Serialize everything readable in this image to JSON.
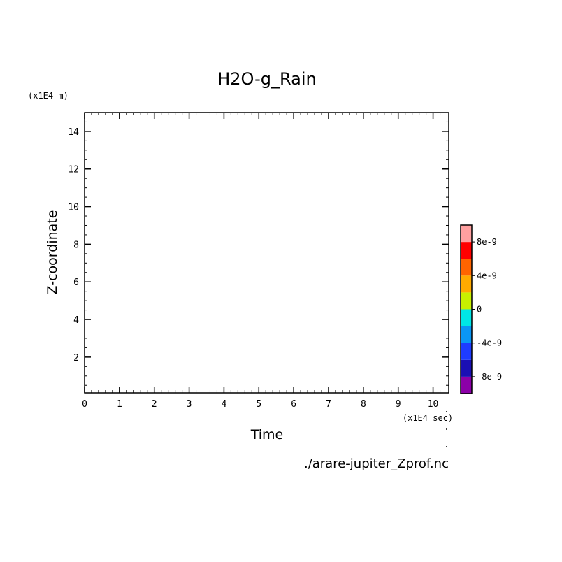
{
  "chart_data": {
    "type": "heatmap",
    "title": "H2O-g_Rain",
    "xlabel": "Time",
    "ylabel": "Z-coordinate",
    "x_scale_label": "(x1E4 sec)",
    "y_scale_label": "(x1E4 m)",
    "xlim": [
      0,
      10.45
    ],
    "ylim": [
      0.1,
      15
    ],
    "x_ticks": [
      0,
      1,
      2,
      3,
      4,
      5,
      6,
      7,
      8,
      9,
      10
    ],
    "y_ticks": [
      2,
      4,
      6,
      8,
      10,
      12,
      14
    ],
    "x_tick_labels": [
      "0",
      "1",
      "2",
      "3",
      "4",
      "5",
      "6",
      "7",
      "8",
      "9",
      "10"
    ],
    "y_tick_labels": [
      "2",
      "4",
      "6",
      "8",
      "10",
      "12",
      "14"
    ],
    "values": [],
    "colorbar": {
      "levels": [
        -1e-08,
        -8e-09,
        -6e-09,
        -4e-09,
        -2e-09,
        0,
        2e-09,
        4e-09,
        6e-09,
        8e-09,
        1e-08
      ],
      "colors": [
        "#8c00a8",
        "#1a0fb4",
        "#1e3cff",
        "#0a96f5",
        "#00e6e6",
        "#c8f000",
        "#ffaa00",
        "#ff6400",
        "#ff0000",
        "#ffa0a0"
      ],
      "tick_values": [
        -8e-09,
        -4e-09,
        0,
        4e-09,
        8e-09
      ],
      "tick_labels": [
        "-8e-9",
        "-4e-9",
        "0",
        "4e-9",
        "8e-9"
      ]
    },
    "source_file": "./arare-jupiter_Zprof.nc"
  }
}
